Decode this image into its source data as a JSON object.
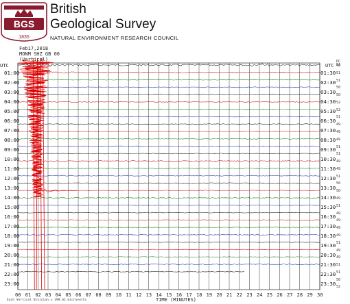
{
  "header": {
    "org_title_1": "British",
    "org_title_2": "Geological Survey",
    "org_subtitle": "NATURAL ENVIRONMENT RESEARCH COUNCIL",
    "logo_letters": "BGS",
    "logo_year": "1835"
  },
  "record": {
    "date": "Feb17,2018",
    "station": "MONM SHZ GB 00",
    "component": "(Vertical)",
    "utc_left": "UTC",
    "utc_right": "UTC",
    "counts_header": "DC\nBA"
  },
  "chart_data": {
    "type": "line",
    "title": "",
    "xlabel": "TIME (MINUTES)",
    "ylabel": "UTC",
    "xlim": [
      0,
      30
    ],
    "x_ticks": [
      "00",
      "01",
      "02",
      "03",
      "04",
      "05",
      "06",
      "07",
      "08",
      "09",
      "10",
      "11",
      "12",
      "13",
      "14",
      "15",
      "16",
      "17",
      "18",
      "19",
      "20",
      "21",
      "22",
      "23",
      "24",
      "25",
      "26",
      "27",
      "28",
      "29",
      "30"
    ],
    "rows_left": [
      "01:00",
      "02:00",
      "03:00",
      "04:00",
      "05:00",
      "06:00",
      "07:00",
      "08:00",
      "09:00",
      "10:00",
      "11:00",
      "12:00",
      "13:00",
      "14:00",
      "15:00",
      "16:00",
      "17:00",
      "18:00",
      "19:00",
      "20:00",
      "21:00",
      "22:00",
      "23:00"
    ],
    "rows_right": [
      "01:30",
      "02:30",
      "03:30",
      "04:30",
      "05:30",
      "06:30",
      "07:30",
      "08:30",
      "09:30",
      "10:30",
      "11:30",
      "12:30",
      "13:30",
      "14:30",
      "15:30",
      "16:30",
      "17:30",
      "18:30",
      "19:30",
      "20:30",
      "21:30",
      "22:30",
      "23:30"
    ],
    "row_counts": [
      "42",
      "51",
      "51",
      "50",
      "50",
      "52",
      "52",
      "51",
      "49",
      "49",
      "49",
      "51",
      "51",
      "49",
      "49",
      "51",
      "50",
      "50",
      "49",
      "51",
      "49",
      "49",
      "49",
      "49",
      "51",
      "49",
      "49",
      "51",
      "51",
      "50",
      "52"
    ],
    "trace_colors": [
      "#111111",
      "#cc1111",
      "#117711",
      "#1a2fb0"
    ],
    "trace_end_minutes": 22.5,
    "earthquake": {
      "row": 0,
      "minute": 1.8,
      "decay_to_row": 29,
      "decay_end_minute": 6.0
    },
    "footnote": "Each Vertical Division = 199.62 microvolts"
  }
}
